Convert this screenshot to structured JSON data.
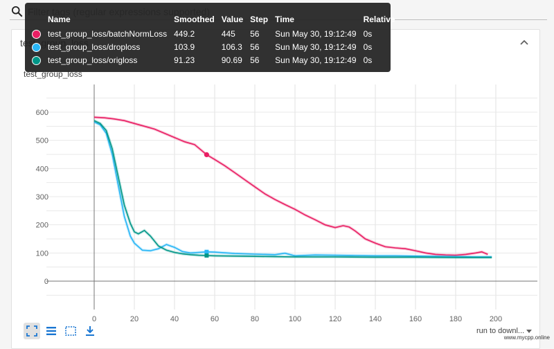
{
  "search": {
    "placeholder": "Filter tags (regular expressions supported)"
  },
  "card": {
    "title": "test_group_loss"
  },
  "chart": {
    "title": "test_group_loss"
  },
  "tooltip": {
    "headers": [
      "Name",
      "Smoothed",
      "Value",
      "Step",
      "Time",
      "Relative"
    ],
    "rows": [
      {
        "name": "test_group_loss/batchNormLoss",
        "smoothed": "449.2",
        "value": "445",
        "step": "56",
        "time": "Sun May 30, 19:12:49",
        "relative": "0s",
        "color": "#e91e63"
      },
      {
        "name": "test_group_loss/droploss",
        "smoothed": "103.9",
        "value": "106.3",
        "step": "56",
        "time": "Sun May 30, 19:12:49",
        "relative": "0s",
        "color": "#29b6f6"
      },
      {
        "name": "test_group_loss/origloss",
        "smoothed": "91.23",
        "value": "90.69",
        "step": "56",
        "time": "Sun May 30, 19:12:49",
        "relative": "0s",
        "color": "#009688"
      }
    ]
  },
  "toolbar": {
    "icons": [
      "fit-domain-icon",
      "toggle-log-scale-icon",
      "expand-icon",
      "download-icon"
    ]
  },
  "run_select": {
    "label": "run to downl..."
  },
  "watermark": {
    "text": "www.mycpp.online"
  },
  "chart_data": {
    "type": "line",
    "xlim": [
      0,
      200
    ],
    "ylim": [
      -50,
      620
    ],
    "x_ticks": [
      0,
      20,
      40,
      60,
      80,
      100,
      120,
      140,
      160,
      180,
      200
    ],
    "y_ticks": [
      0,
      100,
      200,
      300,
      400,
      500,
      600
    ],
    "grid": true,
    "hover_step": 56,
    "series": [
      {
        "name": "test_group_loss/batchNormLoss",
        "color": "#e91e63",
        "x": [
          0,
          5,
          10,
          15,
          20,
          25,
          30,
          35,
          40,
          45,
          50,
          56,
          60,
          65,
          70,
          75,
          80,
          85,
          90,
          95,
          100,
          105,
          110,
          115,
          120,
          124,
          127,
          130,
          135,
          140,
          145,
          150,
          155,
          160,
          165,
          170,
          175,
          180,
          185,
          190,
          193,
          196
        ],
        "y": [
          582,
          580,
          576,
          570,
          560,
          550,
          540,
          525,
          510,
          495,
          485,
          449,
          432,
          410,
          385,
          360,
          335,
          310,
          290,
          272,
          255,
          235,
          218,
          200,
          190,
          197,
          192,
          178,
          150,
          135,
          122,
          118,
          115,
          108,
          100,
          95,
          93,
          92,
          95,
          100,
          104,
          95
        ]
      },
      {
        "name": "test_group_loss/droploss",
        "color": "#29b6f6",
        "x": [
          0,
          3,
          6,
          9,
          12,
          15,
          18,
          20,
          24,
          28,
          32,
          36,
          40,
          44,
          48,
          52,
          56,
          60,
          70,
          80,
          90,
          95,
          100,
          110,
          120,
          130,
          140,
          150,
          160,
          170,
          180,
          190,
          198
        ],
        "y": [
          565,
          555,
          525,
          450,
          340,
          230,
          160,
          135,
          110,
          108,
          115,
          130,
          120,
          105,
          100,
          102,
          104,
          103,
          98,
          96,
          94,
          99,
          90,
          93,
          92,
          91,
          90,
          90,
          89,
          88,
          87,
          86,
          86
        ]
      },
      {
        "name": "test_group_loss/origloss",
        "color": "#009688",
        "x": [
          0,
          3,
          6,
          9,
          12,
          15,
          18,
          20,
          22,
          25,
          28,
          32,
          36,
          40,
          44,
          48,
          52,
          56,
          60,
          70,
          80,
          90,
          100,
          120,
          140,
          160,
          180,
          198
        ],
        "y": [
          570,
          560,
          535,
          470,
          370,
          270,
          205,
          175,
          168,
          180,
          160,
          125,
          110,
          102,
          97,
          94,
          92,
          91,
          90,
          89,
          88,
          87,
          86,
          86,
          85,
          85,
          84,
          84
        ]
      }
    ]
  }
}
